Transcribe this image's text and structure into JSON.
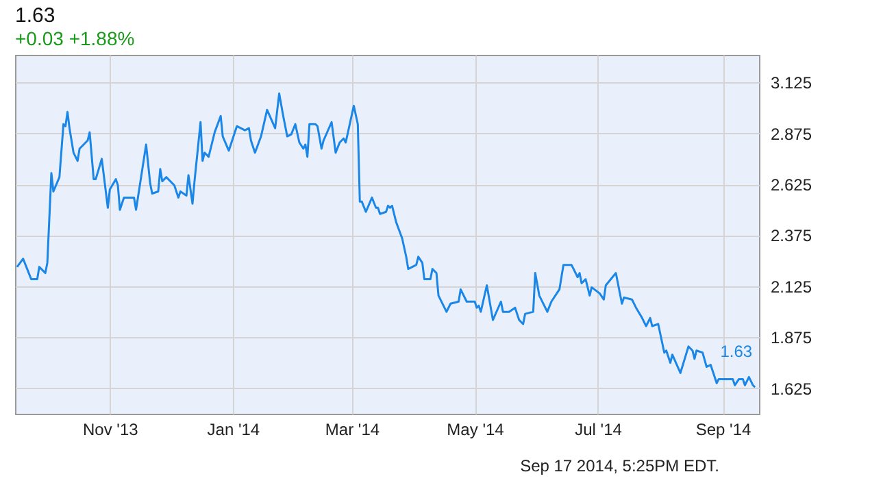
{
  "chart_data": {
    "type": "line",
    "title": "1.63",
    "subtitle": "+0.03 +1.88%",
    "x": [
      "2013-09-16",
      "2013-09-19",
      "2013-09-21",
      "2013-09-23",
      "2013-09-26",
      "2013-09-27",
      "2013-09-30",
      "2013-10-01",
      "2013-10-03",
      "2013-10-04",
      "2013-10-07",
      "2013-10-09",
      "2013-10-10",
      "2013-10-11",
      "2013-10-12",
      "2013-10-14",
      "2013-10-16",
      "2013-10-17",
      "2013-10-21",
      "2013-10-22",
      "2013-10-24",
      "2013-10-25",
      "2013-10-28",
      "2013-10-31",
      "2013-11-01",
      "2013-11-04",
      "2013-11-05",
      "2013-11-06",
      "2013-11-08",
      "2013-11-13",
      "2013-11-14",
      "2013-11-19",
      "2013-11-21",
      "2013-11-22",
      "2013-11-25",
      "2013-11-26",
      "2013-11-27",
      "2013-11-29",
      "2013-12-03",
      "2013-12-05",
      "2013-12-06",
      "2013-12-09",
      "2013-12-10",
      "2013-12-12",
      "2013-12-13",
      "2013-12-16",
      "2013-12-17",
      "2013-12-18",
      "2013-12-20",
      "2013-12-23",
      "2013-12-26",
      "2013-12-27",
      "2013-12-30",
      "2014-01-03",
      "2014-01-07",
      "2014-01-09",
      "2014-01-10",
      "2014-01-12",
      "2014-01-15",
      "2014-01-18",
      "2014-01-22",
      "2014-01-24",
      "2014-01-26",
      "2014-01-28",
      "2014-01-30",
      "2014-02-01",
      "2014-02-03",
      "2014-02-05",
      "2014-02-06",
      "2014-02-07",
      "2014-02-08",
      "2014-02-11",
      "2014-02-12",
      "2014-02-14",
      "2014-02-15",
      "2014-02-19",
      "2014-02-21",
      "2014-02-23",
      "2014-02-25",
      "2014-02-26",
      "2014-03-02",
      "2014-03-04",
      "2014-03-05",
      "2014-03-06",
      "2014-03-08",
      "2014-03-11",
      "2014-03-13",
      "2014-03-14",
      "2014-03-15",
      "2014-03-18",
      "2014-03-19",
      "2014-03-20",
      "2014-03-21",
      "2014-03-23",
      "2014-03-26",
      "2014-03-28",
      "2014-03-29",
      "2014-04-02",
      "2014-04-03",
      "2014-04-05",
      "2014-04-06",
      "2014-04-09",
      "2014-04-10",
      "2014-04-12",
      "2014-04-13",
      "2014-04-17",
      "2014-04-19",
      "2014-04-23",
      "2014-04-24",
      "2014-04-27",
      "2014-05-01",
      "2014-05-02",
      "2014-05-03",
      "2014-05-04",
      "2014-05-07",
      "2014-05-10",
      "2014-05-14",
      "2014-05-15",
      "2014-05-18",
      "2014-05-21",
      "2014-05-23",
      "2014-05-25",
      "2014-05-26",
      "2014-05-30",
      "2014-05-31",
      "2014-06-02",
      "2014-06-06",
      "2014-06-08",
      "2014-06-12",
      "2014-06-13",
      "2014-06-14",
      "2014-06-18",
      "2014-06-21",
      "2014-06-22",
      "2014-06-23",
      "2014-06-25",
      "2014-06-27",
      "2014-06-28",
      "2014-07-02",
      "2014-07-04",
      "2014-07-05",
      "2014-07-10",
      "2014-07-13",
      "2014-07-14",
      "2014-07-18",
      "2014-07-20",
      "2014-07-23",
      "2014-07-25",
      "2014-07-27",
      "2014-07-28",
      "2014-07-31",
      "2014-08-03",
      "2014-08-04",
      "2014-08-06",
      "2014-08-07",
      "2014-08-11",
      "2014-08-15",
      "2014-08-17",
      "2014-08-18",
      "2014-08-19",
      "2014-08-22",
      "2014-08-24",
      "2014-08-26",
      "2014-08-29",
      "2014-08-30",
      "2014-09-02",
      "2014-09-06",
      "2014-09-07",
      "2014-09-09",
      "2014-09-11",
      "2014-09-12",
      "2014-09-14",
      "2014-09-16",
      "2014-09-17"
    ],
    "series": [
      {
        "color": "#1a86e8",
        "values": [
          2.22,
          2.26,
          2.21,
          2.16,
          2.16,
          2.22,
          2.19,
          2.24,
          2.68,
          2.59,
          2.66,
          2.92,
          2.91,
          2.98,
          2.9,
          2.78,
          2.74,
          2.8,
          2.84,
          2.88,
          2.65,
          2.65,
          2.75,
          2.51,
          2.6,
          2.65,
          2.62,
          2.5,
          2.56,
          2.56,
          2.5,
          2.82,
          2.63,
          2.58,
          2.59,
          2.7,
          2.64,
          2.66,
          2.62,
          2.56,
          2.59,
          2.57,
          2.67,
          2.53,
          2.64,
          2.93,
          2.74,
          2.78,
          2.76,
          2.88,
          2.96,
          2.86,
          2.79,
          2.91,
          2.89,
          2.9,
          2.84,
          2.78,
          2.86,
          2.99,
          2.9,
          3.07,
          2.96,
          2.86,
          2.87,
          2.92,
          2.83,
          2.8,
          2.82,
          2.76,
          2.92,
          2.92,
          2.91,
          2.8,
          2.84,
          2.93,
          2.78,
          2.83,
          2.85,
          2.83,
          3.01,
          2.92,
          2.54,
          2.54,
          2.49,
          2.56,
          2.51,
          2.51,
          2.48,
          2.49,
          2.52,
          2.51,
          2.52,
          2.44,
          2.36,
          2.27,
          2.21,
          2.23,
          2.27,
          2.24,
          2.16,
          2.16,
          2.21,
          2.19,
          2.08,
          2.0,
          2.04,
          2.05,
          2.11,
          2.05,
          2.05,
          2.02,
          2.03,
          2.0,
          2.13,
          1.96,
          2.05,
          2.0,
          2.0,
          2.02,
          1.96,
          1.94,
          1.99,
          2.0,
          2.19,
          2.08,
          2.0,
          2.05,
          2.11,
          2.17,
          2.23,
          2.23,
          2.17,
          2.19,
          2.14,
          2.16,
          2.08,
          2.12,
          2.09,
          2.06,
          2.13,
          2.19,
          2.04,
          2.07,
          2.06,
          2.02,
          1.97,
          1.93,
          1.97,
          1.93,
          1.94,
          1.8,
          1.81,
          1.75,
          1.79,
          1.7,
          1.83,
          1.81,
          1.77,
          1.81,
          1.8,
          1.73,
          1.74,
          1.65,
          1.67,
          1.67,
          1.67,
          1.64,
          1.67,
          1.67,
          1.64,
          1.68,
          1.64,
          1.63
        ]
      }
    ],
    "xlim": [
      "2013-09-15",
      "2014-09-19"
    ],
    "xticks": [
      {
        "value": "2013-11-01",
        "label": "Nov '13"
      },
      {
        "value": "2014-01-01",
        "label": "Jan '14"
      },
      {
        "value": "2014-03-01",
        "label": "Mar '14"
      },
      {
        "value": "2014-05-01",
        "label": "May '14"
      },
      {
        "value": "2014-07-01",
        "label": "Jul '14"
      },
      {
        "value": "2014-09-01",
        "label": "Sep '14"
      }
    ],
    "ylim": [
      1.5,
      3.26
    ],
    "yticks": [
      1.625,
      1.875,
      2.125,
      2.375,
      2.625,
      2.875,
      3.125
    ],
    "grid": true,
    "marker": "none",
    "line_style": "solid",
    "annotations": [
      {
        "text": "1.63",
        "x": "2014-09-17",
        "y": 1.63
      },
      "Sep 17 2014, 5:25PM EDT."
    ]
  }
}
